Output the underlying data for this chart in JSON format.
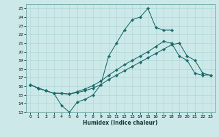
{
  "xlabel": "Humidex (Indice chaleur)",
  "bg_color": "#cce8e8",
  "line_color": "#1a6b6b",
  "grid_color": "#aad4d4",
  "xlim": [
    -0.5,
    23.5
  ],
  "ylim": [
    13,
    25.5
  ],
  "yticks": [
    13,
    14,
    15,
    16,
    17,
    18,
    19,
    20,
    21,
    22,
    23,
    24,
    25
  ],
  "xticks": [
    0,
    1,
    2,
    3,
    4,
    5,
    6,
    7,
    8,
    9,
    10,
    11,
    12,
    13,
    14,
    15,
    16,
    17,
    18,
    19,
    20,
    21,
    22,
    23
  ],
  "series1_x": [
    0,
    1,
    2,
    3,
    4,
    5,
    6,
    7,
    8,
    9,
    10,
    11,
    12,
    13,
    14,
    15,
    16,
    17,
    18
  ],
  "series1_y": [
    16.2,
    15.8,
    15.5,
    15.2,
    13.8,
    13.0,
    14.2,
    14.5,
    15.0,
    16.2,
    19.5,
    21.0,
    22.5,
    23.7,
    24.0,
    25.0,
    22.8,
    22.5,
    22.5
  ],
  "series2_x": [
    0,
    1,
    2,
    3,
    4,
    5,
    6,
    7,
    8,
    9,
    10,
    11,
    12,
    13,
    14,
    15,
    16,
    17,
    18,
    19,
    20,
    21,
    22,
    23
  ],
  "series2_y": [
    16.2,
    15.8,
    15.5,
    15.2,
    15.2,
    15.1,
    15.3,
    15.5,
    15.8,
    16.2,
    16.8,
    17.3,
    17.8,
    18.3,
    18.8,
    19.3,
    19.8,
    20.3,
    20.8,
    21.0,
    19.5,
    19.0,
    17.5,
    17.3
  ],
  "series3_x": [
    0,
    1,
    2,
    3,
    4,
    5,
    6,
    7,
    8,
    9,
    10,
    11,
    12,
    13,
    14,
    15,
    16,
    17,
    18,
    19,
    20,
    21,
    22,
    23
  ],
  "series3_y": [
    16.2,
    15.8,
    15.5,
    15.2,
    15.2,
    15.1,
    15.4,
    15.7,
    16.1,
    16.6,
    17.3,
    17.9,
    18.5,
    19.0,
    19.5,
    20.0,
    20.6,
    21.2,
    21.0,
    19.5,
    19.0,
    17.5,
    17.3,
    17.3
  ]
}
